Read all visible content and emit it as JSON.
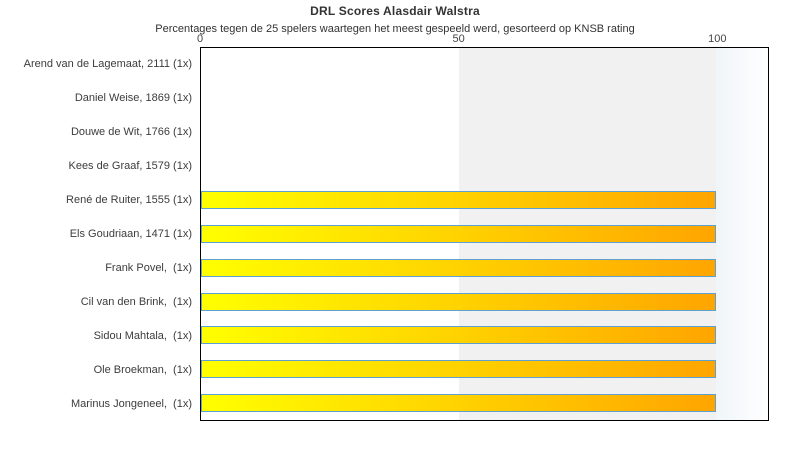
{
  "chart_data": {
    "type": "bar",
    "orientation": "horizontal",
    "title": "DRL Scores Alasdair Walstra",
    "subtitle": "Percentages tegen de 25 spelers waartegen het meest gespeeld werd, gesorteerd op KNSB rating",
    "categories": [
      "Arend van de Lagemaat, 2111 (1x)",
      "Daniel Weise, 1869 (1x)",
      "Douwe de Wit, 1766 (1x)",
      "Kees de Graaf, 1579 (1x)",
      "René de Ruiter, 1555 (1x)",
      "Els Goudriaan, 1471 (1x)",
      "Frank Povel,  (1x)",
      "Cil van den Brink,  (1x)",
      "Sidou Mahtala,  (1x)",
      "Ole Broekman,  (1x)",
      "Marinus Jongeneel,  (1x)"
    ],
    "values": [
      0,
      0,
      0,
      0,
      100,
      100,
      100,
      100,
      100,
      100,
      100
    ],
    "unit": "percent",
    "xlabel": "",
    "ylabel": "",
    "xlim": [
      0,
      110
    ],
    "xticks": [
      0,
      50,
      100
    ],
    "grid": false,
    "legend": false,
    "shaded_region": {
      "from": 50,
      "to": 100,
      "color": "#f1f1f1"
    },
    "colors": {
      "bar_gradient_start": "#ffff00",
      "bar_gradient_end": "#ffa500",
      "bar_border": "#5fa0d2",
      "plot_border": "#000000",
      "band": "#f1f1f1",
      "text": "#3c3c3c"
    }
  }
}
